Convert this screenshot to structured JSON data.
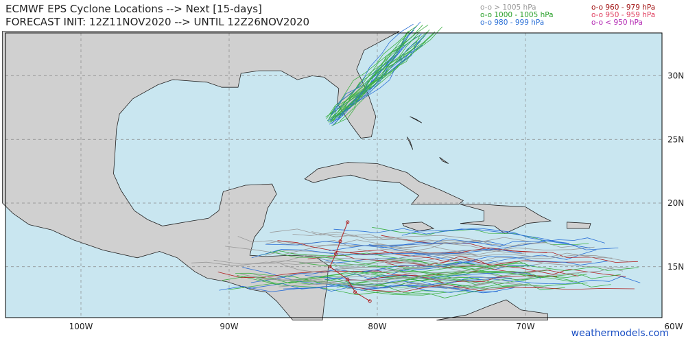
{
  "header": {
    "title_lines": [
      "ECMWF EPS Cyclone Locations --> Next [15-days]",
      "FORECAST INIT: 12Z11NOV2020 --> UNTIL 12Z26NOV2020"
    ]
  },
  "legend": {
    "items": [
      "o-o > 1005 hPa",
      "o-o 1000 - 1005 hPa",
      "o-o 980 - 999 hPa",
      "o-o 960 - 979 hPa",
      "o-o 950 - 959 hPa",
      "o-o < 950 hPa"
    ]
  },
  "axes": {
    "lon_labels": [
      "100W",
      "90W",
      "80W",
      "70W",
      "60W"
    ],
    "lat_labels": [
      "30N",
      "25N",
      "20N",
      "15N"
    ]
  },
  "footer": {
    "credit": "weathermodels.com"
  }
}
